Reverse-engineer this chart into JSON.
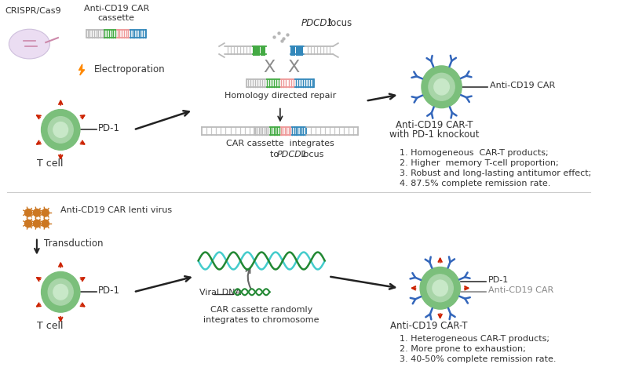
{
  "background_color": "#ffffff",
  "top_panel": {
    "crispr_label": "CRISPR/Cas9",
    "car_cassette_label": "Anti-CD19 CAR\ncassette",
    "electroporation_label": "Electroporation",
    "pd1_label": "PD-1",
    "tcell_label": "T cell",
    "pdcd1_locus_label": "PDCD1 locus",
    "hdr_label": "Homology directed repair",
    "car_integrates_line1": "CAR cassette  integrates",
    "car_integrates_line2_pre": "to ",
    "car_integrates_line2_italic": "PDCD1",
    "car_integrates_line2_post": " locus",
    "result_label_line1": "Anti-CD19 CAR-T",
    "result_label_line2": "with PD-1 knockout",
    "anti_cd19_car_label": "Anti-CD19 CAR",
    "bullets": [
      "1. Homogeneous  CAR-T products;",
      "2. Higher  memory T-cell proportion;",
      "3. Robust and long-lasting antitumor effect;",
      "4. 87.5% complete remission rate."
    ]
  },
  "bottom_panel": {
    "lenti_label": "Anti-CD19 CAR lenti virus",
    "transduction_label": "Transduction",
    "pd1_label": "PD-1",
    "tcell_label": "T cell",
    "viral_dna_label": "Viral DNA",
    "car_random_line1": "CAR cassette randomly",
    "car_random_line2": "integrates to chromosome",
    "result_label": "Anti-CD19 CAR-T",
    "pd1_result_label": "PD-1",
    "anti_cd19_result_label": "Anti-CD19 CAR",
    "bullets": [
      "1. Heterogeneous CAR-T products;",
      "2. More prone to exhaustion;",
      "3. 40-50% complete remission rate."
    ]
  },
  "colors": {
    "cell_outer": "#7bbf7b",
    "cell_inner": "#a8d5a8",
    "cell_inner2": "#c8e8c8",
    "red_spike": "#cc2200",
    "blue_car": "#3366bb",
    "gray_dna": "#bbbbbb",
    "green_segment": "#44aa44",
    "pink_segment": "#ee9999",
    "teal_segment": "#3388bb",
    "orange_virus": "#cc7722",
    "cyan_dna": "#44cccc",
    "dark_green_dna": "#228833",
    "lightning_color": "#ff8800",
    "cas9_color": "#e8d8f0",
    "text_color": "#333333"
  }
}
